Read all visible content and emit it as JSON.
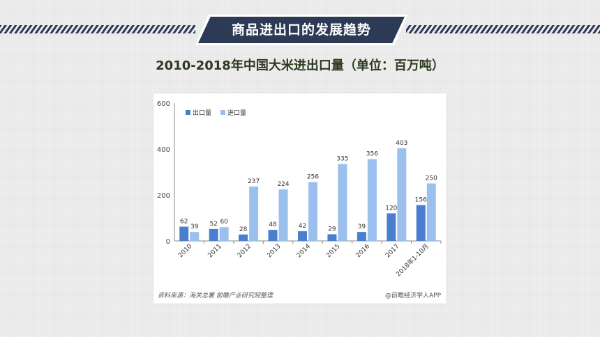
{
  "header": {
    "banner_title": "商品进出口的发展趋势"
  },
  "chart_title": "2010-2018年中国大米进出口量（单位：百万吨）",
  "footer": {
    "source": "资料来源：海关总署  前瞻产业研究院整理",
    "credit": "@前瞻经济学人APP"
  },
  "colors": {
    "export": "#4a7fd0",
    "import": "#9cc0ee",
    "banner": "#2d3a55"
  },
  "chart_data": {
    "type": "bar",
    "categories": [
      "2010",
      "2011",
      "2012",
      "2013",
      "2014",
      "2015",
      "2016",
      "2017",
      "2018年1-10月"
    ],
    "series": [
      {
        "name": "出口量",
        "values": [
          62,
          52,
          28,
          48,
          42,
          29,
          39,
          120,
          156
        ]
      },
      {
        "name": "进口量",
        "values": [
          39,
          60,
          237,
          224,
          256,
          335,
          356,
          403,
          250
        ]
      }
    ],
    "yticks": [
      "0",
      "200",
      "400",
      "600"
    ],
    "ylim": [
      0,
      600
    ],
    "legend_position": "top-left",
    "grid": false
  }
}
